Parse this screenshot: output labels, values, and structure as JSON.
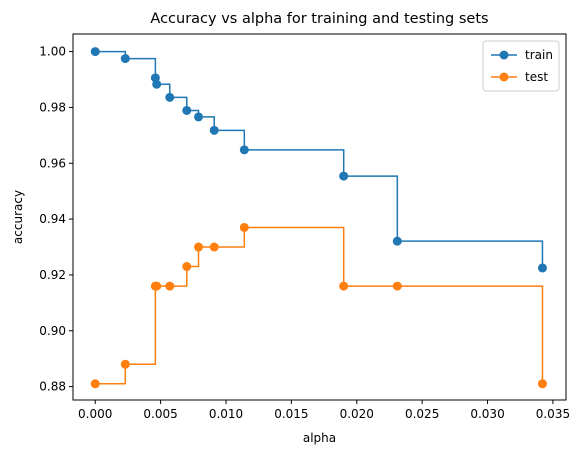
{
  "chart_data": {
    "type": "line",
    "drawstyle": "steps-post",
    "markers": "circle",
    "title": "Accuracy vs alpha for training and testing sets",
    "xlabel": "alpha",
    "ylabel": "accuracy",
    "xlim": [
      -0.0017,
      0.036
    ],
    "ylim": [
      0.8752,
      1.0063
    ],
    "xticks": [
      0.0,
      0.005,
      0.01,
      0.015,
      0.02,
      0.025,
      0.03,
      0.035
    ],
    "xtick_labels": [
      "0.000",
      "0.005",
      "0.010",
      "0.015",
      "0.020",
      "0.025",
      "0.030",
      "0.035"
    ],
    "yticks": [
      0.88,
      0.9,
      0.92,
      0.94,
      0.96,
      0.98,
      1.0
    ],
    "ytick_labels": [
      "0.88",
      "0.90",
      "0.92",
      "0.94",
      "0.96",
      "0.98",
      "1.00"
    ],
    "grid": false,
    "legend_position": "top-right",
    "x": [
      0.0,
      0.0023,
      0.0046,
      0.0047,
      0.0057,
      0.007,
      0.0079,
      0.0091,
      0.0114,
      0.019,
      0.0231,
      0.0342
    ],
    "series": [
      {
        "name": "train",
        "color": "#1f77b4",
        "values": [
          1.0,
          0.9975,
          0.9906,
          0.9883,
          0.9836,
          0.9789,
          0.9766,
          0.9718,
          0.9648,
          0.9554,
          0.9321,
          0.9225
        ]
      },
      {
        "name": "test",
        "color": "#ff7f0e",
        "values": [
          0.881,
          0.888,
          0.916,
          0.916,
          0.916,
          0.923,
          0.93,
          0.93,
          0.937,
          0.916,
          0.916,
          0.881
        ]
      }
    ]
  }
}
